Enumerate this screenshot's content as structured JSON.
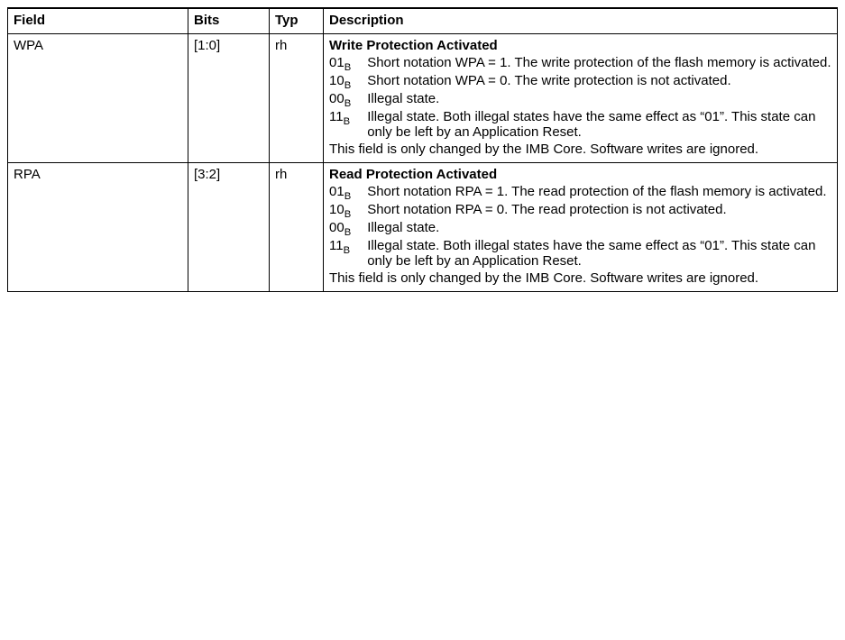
{
  "columns": {
    "field": "Field",
    "bits": "Bits",
    "typ": "Typ",
    "desc": "Description"
  },
  "rows": [
    {
      "field": "WPA",
      "bits": "[1:0]",
      "typ": "rh",
      "title": "Write Protection Activated",
      "values": [
        {
          "code": "01",
          "sub": "B",
          "text": "Short notation WPA = 1. The write protection of the flash memory is activated."
        },
        {
          "code": "10",
          "sub": "B",
          "text": "Short notation WPA = 0. The write protection is not activated."
        },
        {
          "code": "00",
          "sub": "B",
          "text": "Illegal state."
        },
        {
          "code": "11",
          "sub": "B",
          "text": "Illegal state. Both illegal states have the same effect as “01”. This state can only be left by an Application Reset."
        }
      ],
      "note": "This field is only changed by the IMB Core. Software writes are ignored."
    },
    {
      "field": "RPA",
      "bits": "[3:2]",
      "typ": "rh",
      "title": "Read Protection Activated",
      "values": [
        {
          "code": "01",
          "sub": "B",
          "text": "Short notation RPA = 1. The read protection of the flash memory is activated."
        },
        {
          "code": "10",
          "sub": "B",
          "text": "Short notation RPA = 0. The read protection is not activated."
        },
        {
          "code": "00",
          "sub": "B",
          "text": "Illegal state."
        },
        {
          "code": "11",
          "sub": "B",
          "text": "Illegal state. Both illegal states have the same effect as “01”. This state can only be left by an Application Reset."
        }
      ],
      "note": "This field is only changed by the IMB Core. Software writes are ignored."
    }
  ]
}
